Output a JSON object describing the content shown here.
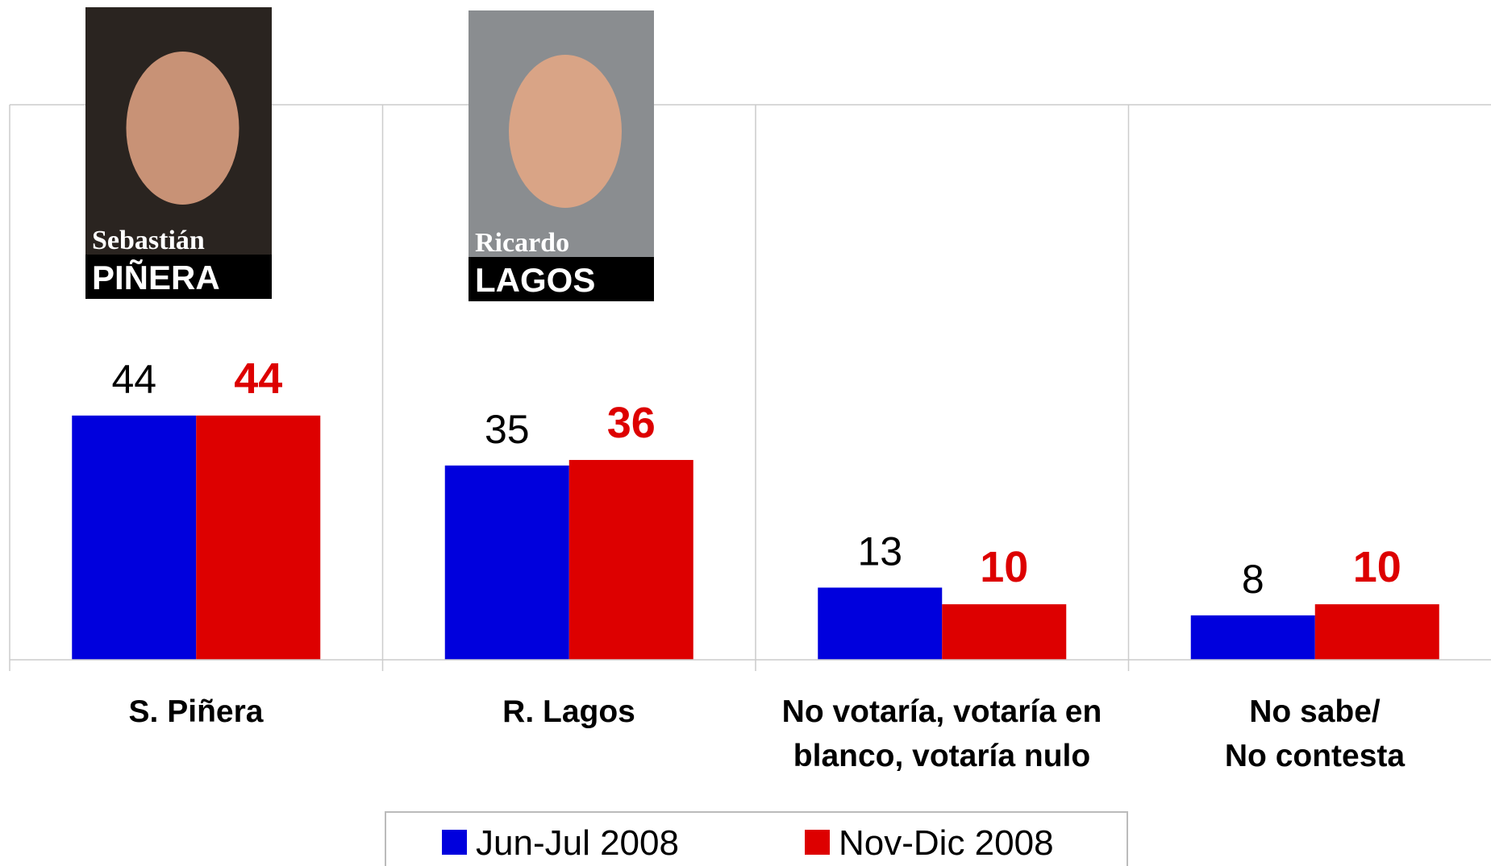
{
  "chart_data": {
    "type": "bar",
    "categories": [
      "S. Piñera",
      "R. Lagos",
      "No votaría, votaría en\nblanco, votaría nulo",
      "No sabe/\nNo contesta"
    ],
    "series": [
      {
        "name": "Jun-Jul 2008",
        "color": "#0000dd",
        "values": [
          44,
          35,
          13,
          8
        ]
      },
      {
        "name": "Nov-Dic 2008",
        "color": "#dd0000",
        "values": [
          44,
          36,
          10,
          10
        ]
      }
    ],
    "ylim": [
      0,
      100
    ],
    "photo_captions": [
      [
        "Sebastián",
        "PIÑERA"
      ],
      [
        "Ricardo",
        "LAGOS"
      ]
    ]
  }
}
